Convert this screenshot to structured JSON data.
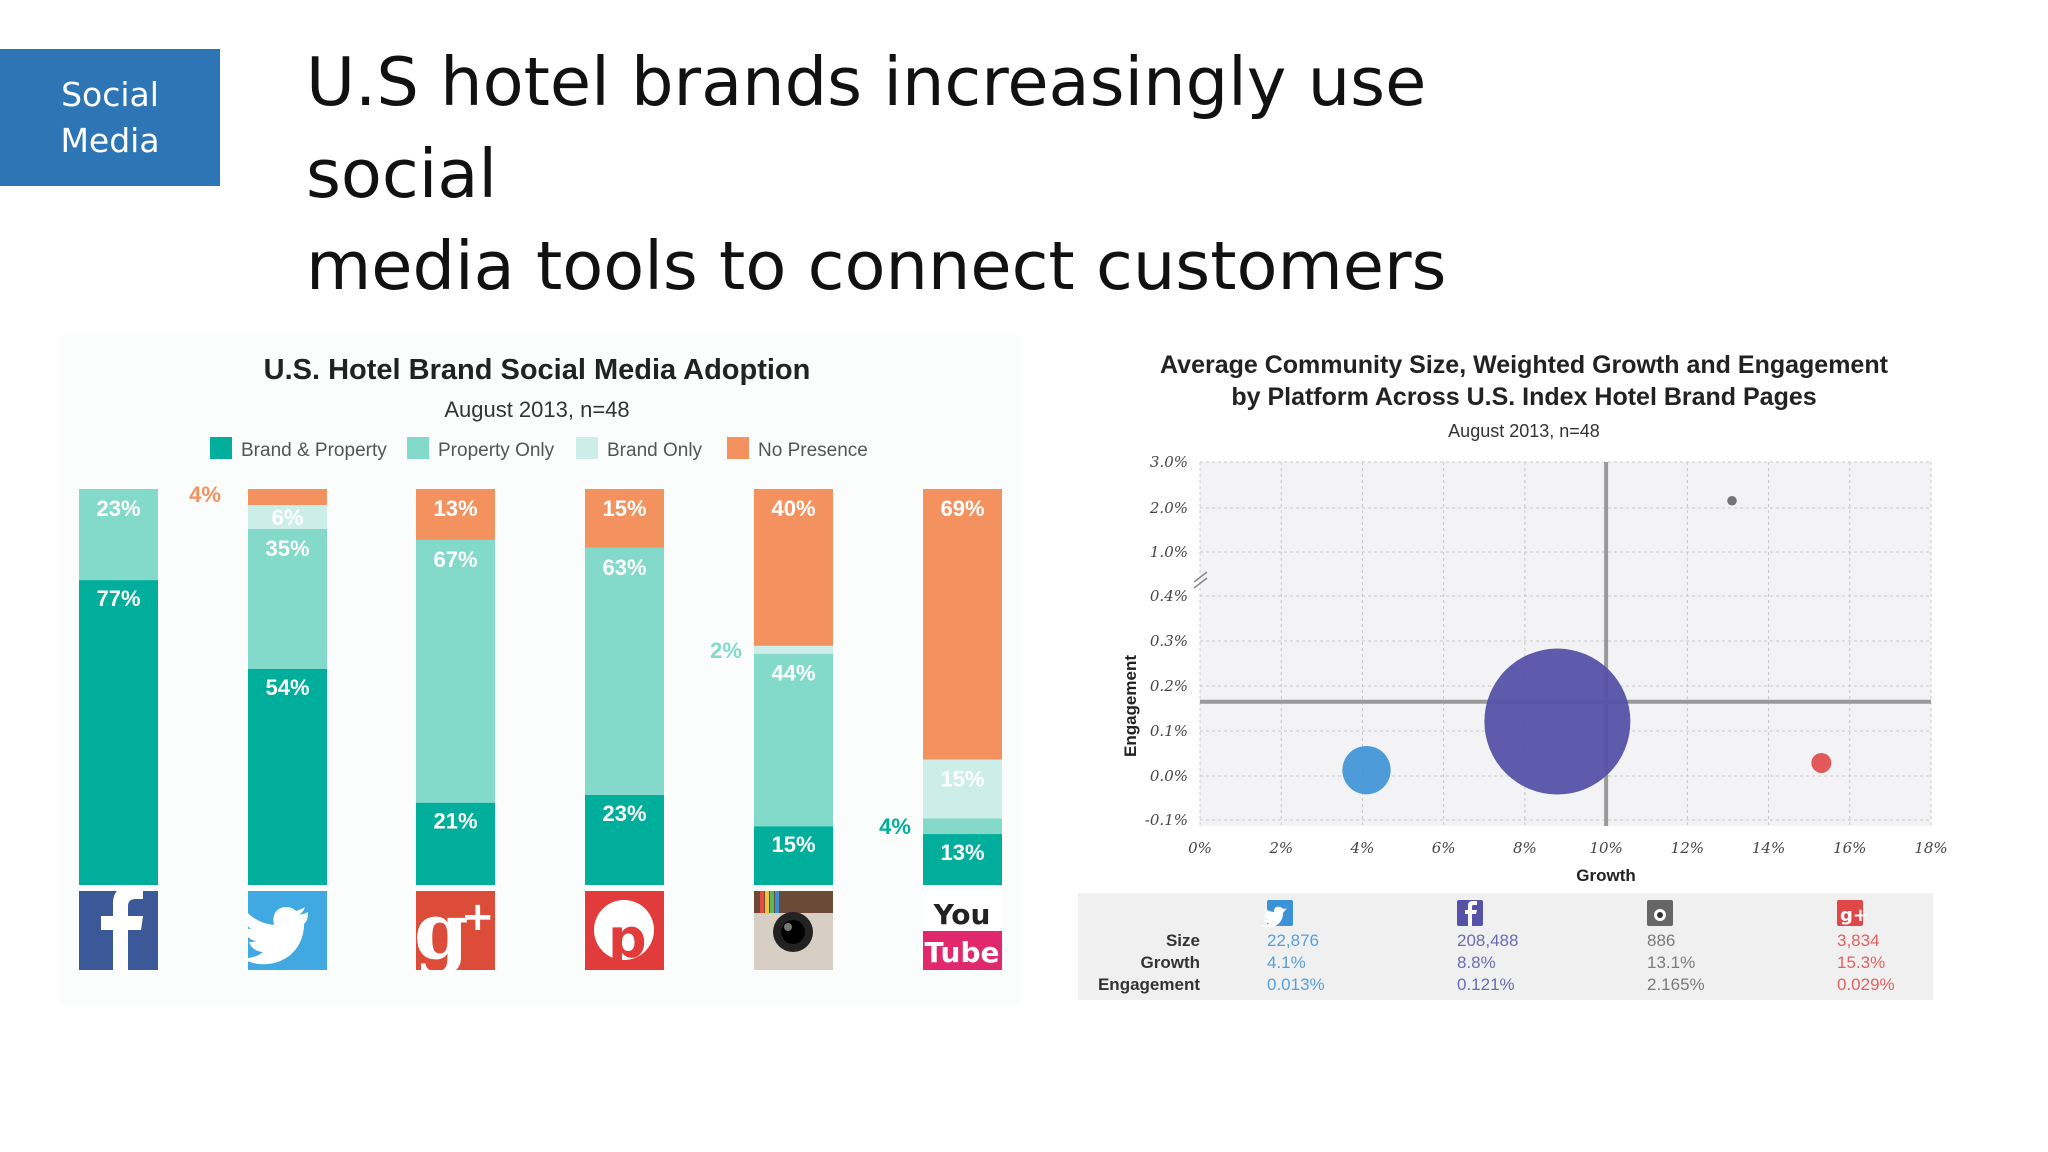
{
  "header": {
    "badge_line1": "Social",
    "badge_line2": "Media",
    "title_line1": "U.S hotel brands increasingly use social",
    "title_line2": "media tools to connect customers"
  },
  "colors": {
    "brand_property": "#00ae9b",
    "property_only": "#83dacb",
    "brand_only": "#cdeee8",
    "no_presence": "#f4925f",
    "bubble_twitter": "#3b92d6",
    "bubble_facebook": "#5652a8",
    "bubble_instagram": "#666666",
    "bubble_google": "#e04848"
  },
  "chart_data": [
    {
      "type": "bar",
      "stacked": true,
      "title": "U.S. Hotel Brand Social Media Adoption",
      "subtitle": "August 2013, n=48",
      "legend_position": "top",
      "categories": [
        "facebook-icon",
        "twitter-icon",
        "google-plus-icon",
        "pinterest-icon",
        "instagram-icon",
        "youtube-icon"
      ],
      "series": [
        {
          "name": "Brand & Property",
          "values": [
            77,
            54,
            21,
            23,
            15,
            13
          ],
          "labels": [
            "77%",
            "54%",
            "21%",
            "23%",
            "15%",
            "13%"
          ]
        },
        {
          "name": "Property Only",
          "values": [
            23,
            35,
            67,
            63,
            44,
            4
          ],
          "labels": [
            "23%",
            "35%",
            "67%",
            "63%",
            "44%",
            "4%"
          ]
        },
        {
          "name": "Brand Only",
          "values": [
            0,
            6,
            0,
            0,
            2,
            15
          ],
          "labels": [
            "",
            "6%",
            "",
            "",
            "2%",
            "15%"
          ]
        },
        {
          "name": "No Presence",
          "values": [
            0,
            4,
            13,
            15,
            40,
            69
          ],
          "labels": [
            "",
            "4%",
            "13%",
            "15%",
            "40%",
            "69%"
          ]
        }
      ],
      "youtube_icon_text": [
        "You",
        "Tube"
      ]
    },
    {
      "type": "scatter",
      "title_line1": "Average Community Size, Weighted Growth and Engagement",
      "title_line2": "by Platform Across U.S. Index Hotel Brand Pages",
      "subtitle": "August 2013, n=48",
      "xlabel": "Growth",
      "ylabel": "Engagement",
      "xlim": [
        0,
        18
      ],
      "x_ticks": [
        "0%",
        "2%",
        "4%",
        "6%",
        "8%",
        "10%",
        "12%",
        "14%",
        "16%",
        "18%"
      ],
      "y_ticks": [
        "3.0%",
        "2.0%",
        "1.0%",
        "0.4%",
        "0.3%",
        "0.2%",
        "0.1%",
        "0.0%",
        "-0.1%"
      ],
      "y_axis_break": true,
      "grid": true,
      "points": [
        {
          "platform": "Twitter",
          "icon": "twitter-icon",
          "size": 22876,
          "growth": 4.1,
          "engagement": 0.013
        },
        {
          "platform": "Facebook",
          "icon": "facebook-icon",
          "size": 208488,
          "growth": 8.8,
          "engagement": 0.121
        },
        {
          "platform": "Instagram",
          "icon": "instagram-icon",
          "size": 886,
          "growth": 13.1,
          "engagement": 2.165
        },
        {
          "platform": "Google+",
          "icon": "google-plus-icon",
          "size": 3834,
          "growth": 15.3,
          "engagement": 0.029
        }
      ],
      "averages": {
        "growth": 10,
        "engagement": 0.165
      },
      "table": {
        "row_labels": [
          "Size",
          "Growth",
          "Engagement"
        ],
        "columns": [
          {
            "icon": "twitter-icon",
            "values": [
              "22,876",
              "4.1%",
              "0.013%"
            ]
          },
          {
            "icon": "facebook-icon",
            "values": [
              "208,488",
              "8.8%",
              "0.121%"
            ]
          },
          {
            "icon": "instagram-icon",
            "values": [
              "886",
              "13.1%",
              "2.165%"
            ]
          },
          {
            "icon": "google-plus-icon",
            "values": [
              "3,834",
              "15.3%",
              "0.029%"
            ]
          }
        ]
      }
    }
  ]
}
